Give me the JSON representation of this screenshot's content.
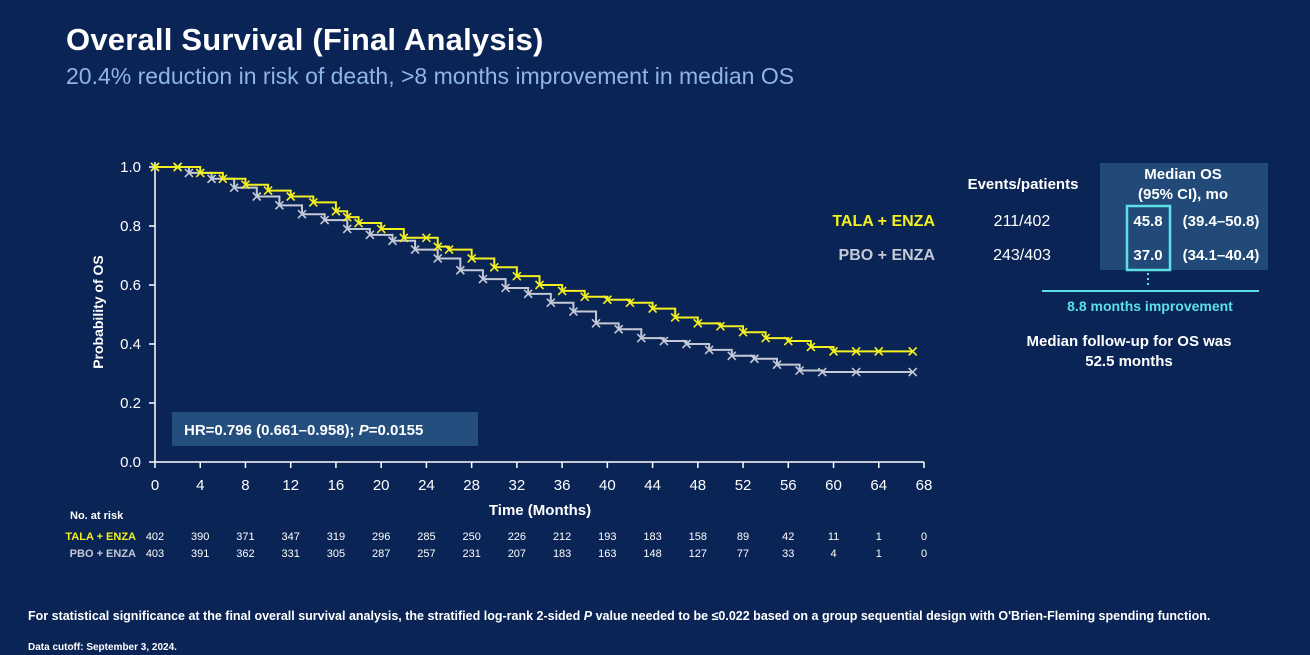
{
  "slide": {
    "title": "Overall Survival (Final Analysis)",
    "subtitle": "20.4% reduction in risk of death, >8 months improvement in median OS",
    "footnote_pre": "For statistical significance at the final overall survival analysis, the stratified log-rank 2-sided ",
    "footnote_italic": "P",
    "footnote_post": " value needed to be ≤0.022 based on a group sequential design with O'Brien-Fleming spending function.",
    "data_cutoff": "Data cutoff: September 3, 2024."
  },
  "colors": {
    "background": "#0b2456",
    "tala_enza": "#f2f01e",
    "pbo_enza": "#c4c9d6",
    "accent_cyan": "#5ce0e6",
    "panel": "#214a78",
    "hr_box": "#234e7e"
  },
  "chart_data": {
    "type": "line",
    "xlabel": "Time (Months)",
    "ylabel": "Probability of OS",
    "xlim": [
      0,
      68
    ],
    "ylim": [
      0,
      1
    ],
    "x_ticks": [
      "0",
      "4",
      "8",
      "12",
      "16",
      "20",
      "24",
      "28",
      "32",
      "36",
      "40",
      "44",
      "48",
      "52",
      "56",
      "60",
      "64",
      "68"
    ],
    "y_ticks": [
      "0.0",
      "0.2",
      "0.4",
      "0.6",
      "0.8",
      "1.0"
    ],
    "series": [
      {
        "name": "TALA + ENZA",
        "x": [
          0,
          2,
          4,
          6,
          8,
          10,
          12,
          14,
          16,
          17,
          18,
          20,
          22,
          24,
          25,
          26,
          28,
          30,
          32,
          34,
          36,
          38,
          40,
          42,
          44,
          46,
          48,
          50,
          52,
          54,
          56,
          58,
          60,
          62,
          64,
          67
        ],
        "y": [
          1.0,
          1.0,
          0.98,
          0.96,
          0.94,
          0.92,
          0.9,
          0.88,
          0.85,
          0.83,
          0.81,
          0.79,
          0.76,
          0.76,
          0.73,
          0.72,
          0.69,
          0.66,
          0.63,
          0.6,
          0.58,
          0.56,
          0.55,
          0.54,
          0.52,
          0.49,
          0.47,
          0.46,
          0.44,
          0.42,
          0.41,
          0.39,
          0.375,
          0.375,
          0.375,
          0.375
        ]
      },
      {
        "name": "PBO + ENZA",
        "x": [
          0,
          2,
          3,
          5,
          7,
          9,
          11,
          13,
          15,
          17,
          19,
          21,
          23,
          25,
          27,
          29,
          31,
          33,
          35,
          37,
          39,
          41,
          43,
          45,
          47,
          49,
          51,
          53,
          55,
          57,
          59,
          62,
          67
        ],
        "y": [
          1.0,
          1.0,
          0.98,
          0.96,
          0.93,
          0.9,
          0.87,
          0.84,
          0.82,
          0.79,
          0.77,
          0.75,
          0.72,
          0.69,
          0.65,
          0.62,
          0.59,
          0.57,
          0.54,
          0.51,
          0.47,
          0.45,
          0.42,
          0.41,
          0.4,
          0.38,
          0.36,
          0.35,
          0.33,
          0.31,
          0.305,
          0.305,
          0.305
        ]
      }
    ],
    "hr_text_pre": "HR=0.796 (0.661–0.958); ",
    "hr_text_italic": "P",
    "hr_text_post": "=0.0155",
    "risk_table": {
      "title": "No. at risk",
      "rows": [
        {
          "name": "TALA + ENZA",
          "values": [
            "402",
            "390",
            "371",
            "347",
            "319",
            "296",
            "285",
            "250",
            "226",
            "212",
            "193",
            "183",
            "158",
            "89",
            "42",
            "11",
            "1",
            "0"
          ]
        },
        {
          "name": "PBO + ENZA",
          "values": [
            "403",
            "391",
            "362",
            "331",
            "305",
            "287",
            "257",
            "231",
            "207",
            "183",
            "163",
            "148",
            "127",
            "77",
            "33",
            "4",
            "1",
            "0"
          ]
        }
      ]
    }
  },
  "summary": {
    "events_header": "Events/patients",
    "median_header_line1": "Median OS",
    "median_header_line2": "(95% CI), mo",
    "rows": [
      {
        "name": "TALA + ENZA",
        "events": "211/402",
        "median": "45.8",
        "ci": "(39.4–50.8)"
      },
      {
        "name": "PBO + ENZA",
        "events": "243/403",
        "median": "37.0",
        "ci": "(34.1–40.4)"
      }
    ],
    "improvement": "8.8 months improvement",
    "followup_line1": "Median follow-up for OS was",
    "followup_line2": "52.5 months"
  }
}
